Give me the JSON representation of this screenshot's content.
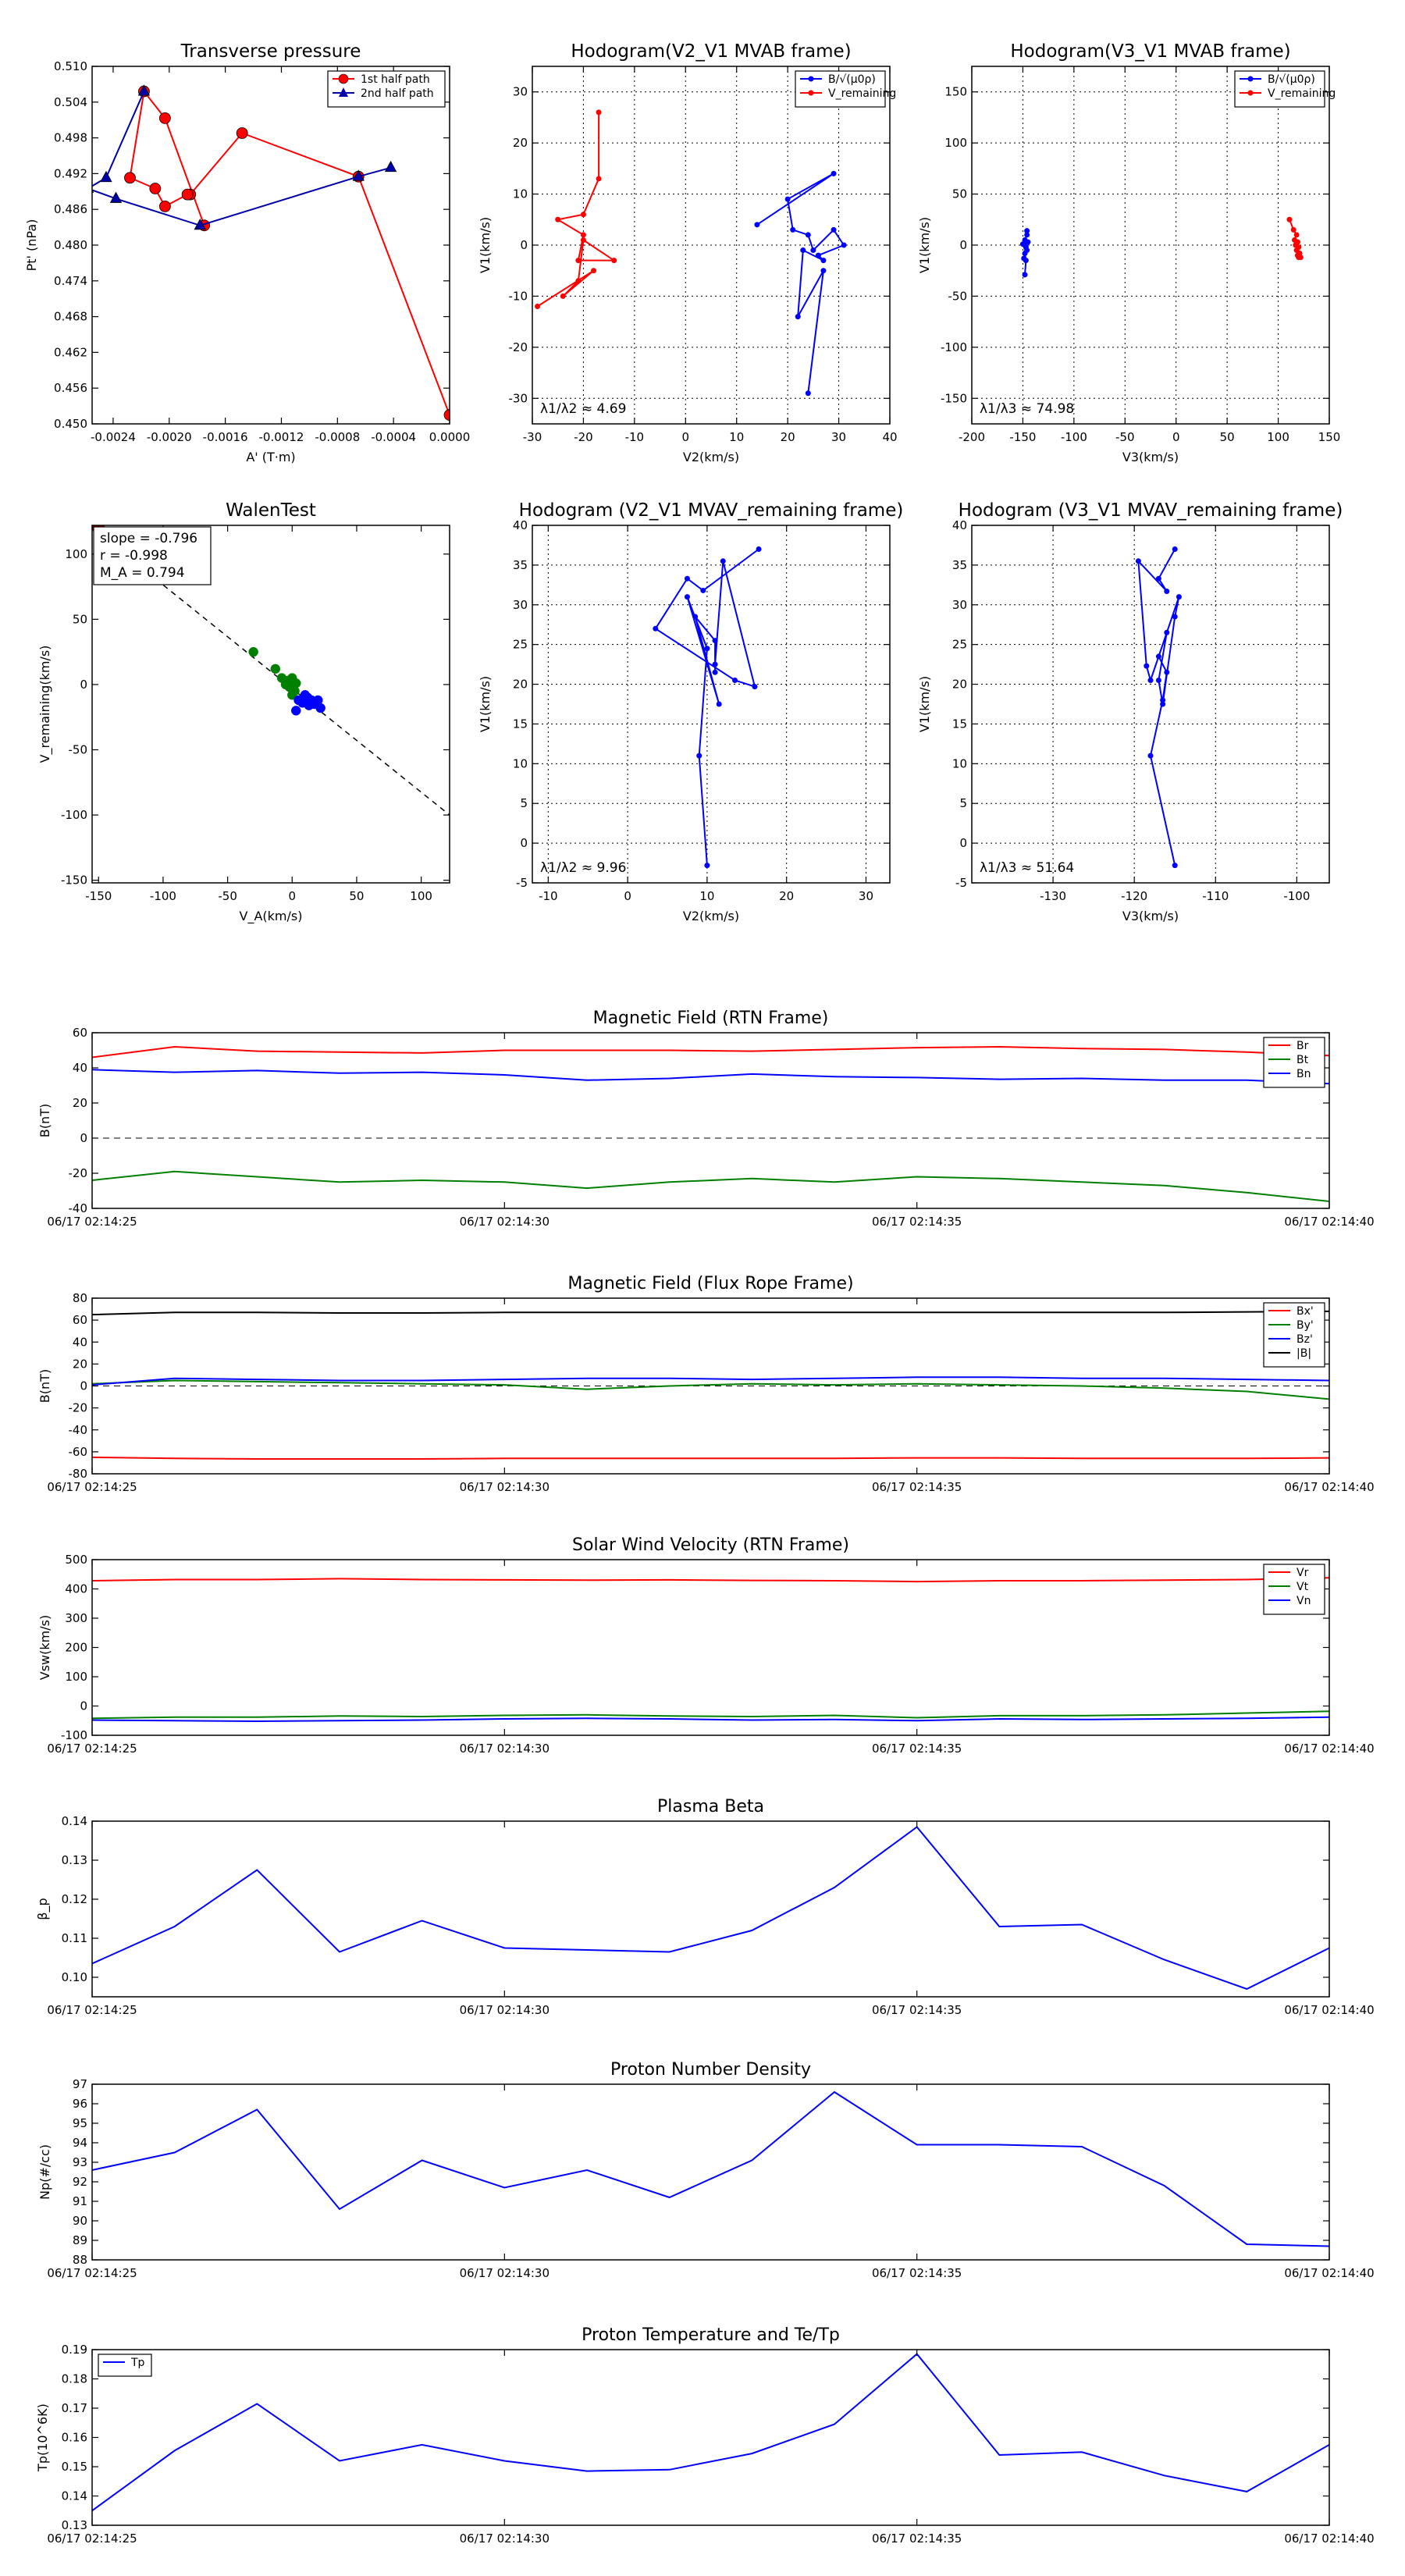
{
  "chart_data": [
    {
      "id": "tp",
      "type": "scatter",
      "title": "Transverse pressure",
      "xlabel": "A' (T·m)",
      "ylabel": "Pt' (nPa)",
      "xlim": [
        -0.00255,
        0.0
      ],
      "ylim": [
        0.45,
        0.51
      ],
      "xticks": [
        -0.0024,
        -0.002,
        -0.0016,
        -0.0012,
        -0.0008,
        -0.0004,
        0.0
      ],
      "xtick_labels": [
        "-0.0024",
        "-0.0020",
        "-0.0016",
        "-0.0012",
        "-0.0008",
        "-0.0004",
        "0.0000"
      ],
      "yticks": [
        0.45,
        0.456,
        0.462,
        0.468,
        0.474,
        0.48,
        0.486,
        0.492,
        0.498,
        0.504,
        0.51
      ],
      "ytick_labels": [
        "0.450",
        "0.456",
        "0.462",
        "0.468",
        "0.474",
        "0.480",
        "0.486",
        "0.492",
        "0.498",
        "0.504",
        "0.510"
      ],
      "legend": "top-right",
      "series": [
        {
          "name": "1st half path",
          "color": "#ff0000",
          "marker": "circle",
          "x": [
            0.0,
            -0.00065,
            -0.00148,
            -0.00185,
            -0.00187,
            -0.00203,
            -0.0021,
            -0.00228,
            -0.00218,
            -0.00203,
            -0.00175
          ],
          "y": [
            0.4515,
            0.4915,
            0.4988,
            0.4885,
            0.4885,
            0.4865,
            0.4895,
            0.4913,
            0.5058,
            0.5013,
            0.4833
          ]
        },
        {
          "name": "2nd half path",
          "color": "#0000aa",
          "marker": "triangle",
          "x": [
            -0.00042,
            -0.00065,
            -0.00178,
            -0.00238,
            -0.00258,
            -0.00245,
            -0.00218
          ],
          "y": [
            0.493,
            0.4915,
            0.4833,
            0.4878,
            0.4895,
            0.4913,
            0.5058
          ]
        }
      ]
    },
    {
      "id": "h1",
      "type": "line",
      "title": "Hodogram(V2_V1 MVAB frame)",
      "xlabel": "V2(km/s)",
      "ylabel": "V1(km/s)",
      "xlim": [
        -30,
        40
      ],
      "ylim": [
        -35,
        35
      ],
      "xticks": [
        -30,
        -20,
        -10,
        0,
        10,
        20,
        30,
        40
      ],
      "yticks": [
        -30,
        -20,
        -10,
        0,
        10,
        20,
        30
      ],
      "annotation": "λ1/λ2 ≈ 4.69",
      "legend": "top-right",
      "series": [
        {
          "name": "B/√(μ0ρ)",
          "color": "#0000ff",
          "x": [
            14,
            29,
            20,
            21,
            24,
            25,
            29,
            31,
            26,
            27,
            23,
            22,
            27,
            24
          ],
          "y": [
            4,
            14,
            9,
            3,
            2,
            -1,
            3,
            0,
            -2,
            -3,
            -1,
            -14,
            -5,
            -29
          ]
        },
        {
          "name": "V_remaining",
          "color": "#ff0000",
          "x": [
            -17,
            -17,
            -20,
            -25,
            -20,
            -21,
            -14,
            -20,
            -21,
            -24,
            -18,
            -29
          ],
          "y": [
            26,
            13,
            6,
            5,
            2,
            -3,
            -3,
            1,
            -7,
            -10,
            -5,
            -12
          ]
        }
      ]
    },
    {
      "id": "h2",
      "type": "line",
      "title": "Hodogram(V3_V1 MVAB frame)",
      "xlabel": "V3(km/s)",
      "ylabel": "V1(km/s)",
      "xlim": [
        -200,
        150
      ],
      "ylim": [
        -175,
        175
      ],
      "xticks": [
        -200,
        -150,
        -100,
        -50,
        0,
        50,
        100,
        150
      ],
      "yticks": [
        -150,
        -100,
        -50,
        0,
        50,
        100,
        150
      ],
      "annotation": "λ1/λ3 ≈ 74.98",
      "legend": "top-right",
      "series": [
        {
          "name": "B/√(μ0ρ)",
          "color": "#0000ff",
          "x": [
            -146,
            -146,
            -148,
            -145,
            -150,
            -147,
            -148,
            -146,
            -149,
            -148,
            -147,
            -148
          ],
          "y": [
            14,
            10,
            5,
            3,
            1,
            -2,
            0,
            -5,
            -13,
            -8,
            -15,
            -29
          ]
        },
        {
          "name": "V_remaining",
          "color": "#ff0000",
          "x": [
            111,
            115,
            118,
            116,
            119,
            117,
            120,
            118,
            121,
            119,
            120,
            122
          ],
          "y": [
            25,
            15,
            10,
            5,
            3,
            0,
            -2,
            -5,
            -8,
            -10,
            -12,
            -12
          ]
        }
      ]
    },
    {
      "id": "walen",
      "type": "scatter",
      "title": "WalenTest",
      "xlabel": "V_A(km/s)",
      "ylabel": "V_remaining(km/s)",
      "xlim": [
        -155,
        122
      ],
      "ylim": [
        -152,
        122
      ],
      "xticks": [
        -150,
        -100,
        -50,
        0,
        50,
        100
      ],
      "yticks": [
        -150,
        -100,
        -50,
        0,
        50,
        100
      ],
      "legend_box": [
        "slope = -0.796",
        "r = -0.998",
        "M_A = 0.794"
      ],
      "fit_line": {
        "x": [
          -155,
          122
        ],
        "y": [
          120,
          -100
        ]
      },
      "series": [
        {
          "name": "green",
          "color": "#008000",
          "x": [
            -30,
            -13,
            -8,
            -3,
            0,
            -5,
            3,
            -2,
            2,
            0
          ],
          "y": [
            25,
            12,
            5,
            3,
            5,
            0,
            1,
            -2,
            -5,
            -8
          ]
        },
        {
          "name": "blue",
          "color": "#0000ff",
          "x": [
            5,
            10,
            12,
            15,
            17,
            20,
            22,
            18,
            13,
            8,
            3,
            11
          ],
          "y": [
            -12,
            -8,
            -10,
            -12,
            -15,
            -12,
            -18,
            -14,
            -16,
            -14,
            -20,
            -13
          ]
        },
        {
          "name": "red",
          "color": "#cc0000",
          "x": [
            -150,
            -147
          ],
          "y": [
            120,
            116
          ]
        }
      ]
    },
    {
      "id": "h3",
      "type": "line",
      "title": "Hodogram (V2_V1 MVAV_remaining frame)",
      "xlabel": "V2(km/s)",
      "ylabel": "V1(km/s)",
      "xlim": [
        -12,
        33
      ],
      "ylim": [
        -5,
        40
      ],
      "xticks": [
        -10,
        0,
        10,
        20,
        30
      ],
      "yticks": [
        -5,
        0,
        5,
        10,
        15,
        20,
        25,
        30,
        35,
        40
      ],
      "annotation": "λ1/λ2 ≈ 9.96",
      "series": [
        {
          "name": "B",
          "color": "#0000ff",
          "x": [
            16.5,
            9.5,
            7.5,
            3.5,
            13.5,
            16,
            12,
            11,
            11,
            11,
            8.5,
            11.5,
            7.5,
            10,
            9,
            10
          ],
          "y": [
            37,
            31.8,
            33.3,
            27,
            20.5,
            19.7,
            35.5,
            22.5,
            21.5,
            25.5,
            28.5,
            17.5,
            31,
            24.5,
            11,
            -2.8
          ]
        }
      ]
    },
    {
      "id": "h4",
      "type": "line",
      "title": "Hodogram (V3_V1 MVAV_remaining frame)",
      "xlabel": "V3(km/s)",
      "ylabel": "V1(km/s)",
      "xlim": [
        -140,
        -96
      ],
      "ylim": [
        -5,
        40
      ],
      "xticks": [
        -130,
        -120,
        -110,
        -100
      ],
      "yticks": [
        -5,
        0,
        5,
        10,
        15,
        20,
        25,
        30,
        35,
        40
      ],
      "annotation": "λ1/λ3 ≈ 51.64",
      "series": [
        {
          "name": "B",
          "color": "#0000ff",
          "x": [
            -115,
            -117,
            -116,
            -119.5,
            -118.5,
            -118,
            -116,
            -117,
            -116.5,
            -115,
            -114.5,
            -117,
            -116,
            -116.5,
            -118,
            -115
          ],
          "y": [
            37,
            33.3,
            31.7,
            35.5,
            22.3,
            20.5,
            26.5,
            20.5,
            17.5,
            28.5,
            31,
            23.5,
            21.5,
            18,
            11,
            -2.8
          ]
        }
      ]
    },
    {
      "id": "mag_rtn",
      "type": "line",
      "title": "Magnetic Field (RTN Frame)",
      "ylabel": "B(nT)",
      "xlim": [
        0,
        15
      ],
      "ylim": [
        -40,
        60
      ],
      "yticks": [
        -40,
        -20,
        0,
        20,
        40,
        60
      ],
      "xticks": [
        0,
        5,
        10,
        15
      ],
      "xtick_labels": [
        "06/17 02:14:25",
        "06/17 02:14:30",
        "06/17 02:14:35",
        "06/17 02:14:40"
      ],
      "zero_line": true,
      "legend": "top-right",
      "x": [
        0,
        1,
        2,
        3,
        4,
        5,
        6,
        7,
        8,
        9,
        10,
        11,
        12,
        13,
        14,
        15
      ],
      "series": [
        {
          "name": "Br",
          "color": "#ff0000",
          "values": [
            46,
            52,
            49.5,
            49,
            48.5,
            50,
            50,
            50,
            49.5,
            50.5,
            51.5,
            52,
            51,
            50.5,
            49,
            47
          ]
        },
        {
          "name": "Bt",
          "color": "#008000",
          "values": [
            -24,
            -19,
            -22,
            -25,
            -24,
            -25,
            -28.5,
            -25,
            -23,
            -25,
            -22,
            -23,
            -25,
            -27,
            -31,
            -36
          ]
        },
        {
          "name": "Bn",
          "color": "#0000ff",
          "values": [
            39,
            37.5,
            38.5,
            37,
            37.5,
            36,
            33,
            34,
            36.5,
            35,
            34.5,
            33.5,
            34,
            33,
            33,
            31
          ]
        }
      ]
    },
    {
      "id": "mag_fr",
      "type": "line",
      "title": "Magnetic Field (Flux Rope Frame)",
      "ylabel": "B(nT)",
      "xlim": [
        0,
        15
      ],
      "ylim": [
        -80,
        80
      ],
      "yticks": [
        -80,
        -60,
        -40,
        -20,
        0,
        20,
        40,
        60,
        80
      ],
      "xticks": [
        0,
        5,
        10,
        15
      ],
      "xtick_labels": [
        "06/17 02:14:25",
        "06/17 02:14:30",
        "06/17 02:14:35",
        "06/17 02:14:40"
      ],
      "zero_line": true,
      "legend": "top-right",
      "x": [
        0,
        1,
        2,
        3,
        4,
        5,
        6,
        7,
        8,
        9,
        10,
        11,
        12,
        13,
        14,
        15
      ],
      "series": [
        {
          "name": "Bx'",
          "color": "#ff0000",
          "values": [
            -65,
            -66,
            -66.5,
            -66.5,
            -66.5,
            -66,
            -66,
            -66,
            -66,
            -66,
            -65.5,
            -65.5,
            -66,
            -66,
            -66,
            -65.5
          ]
        },
        {
          "name": "By'",
          "color": "#008000",
          "values": [
            2,
            5,
            4,
            3,
            2,
            1,
            -3,
            0,
            2,
            1,
            2,
            1,
            0,
            -2,
            -5,
            -12
          ]
        },
        {
          "name": "Bz'",
          "color": "#0000ff",
          "values": [
            1,
            7,
            6,
            5,
            5,
            6,
            7,
            7,
            6,
            7,
            8,
            8,
            7,
            7,
            6,
            5
          ]
        },
        {
          "name": "|B|",
          "color": "#000000",
          "values": [
            65,
            67,
            67,
            66.5,
            66.5,
            67,
            67,
            67,
            67,
            67,
            67,
            67,
            67,
            67,
            67.5,
            68
          ]
        }
      ]
    },
    {
      "id": "vel",
      "type": "line",
      "title": "Solar Wind Velocity (RTN Frame)",
      "ylabel": "Vsw(km/s)",
      "xlim": [
        0,
        15
      ],
      "ylim": [
        -100,
        500
      ],
      "yticks": [
        -100,
        0,
        100,
        200,
        300,
        400,
        500
      ],
      "xticks": [
        0,
        5,
        10,
        15
      ],
      "xtick_labels": [
        "06/17 02:14:25",
        "06/17 02:14:30",
        "06/17 02:14:35",
        "06/17 02:14:40"
      ],
      "legend": "top-right",
      "x": [
        0,
        1,
        2,
        3,
        4,
        5,
        6,
        7,
        8,
        9,
        10,
        11,
        12,
        13,
        14,
        15
      ],
      "series": [
        {
          "name": "Vr",
          "color": "#ff0000",
          "values": [
            428,
            432,
            432,
            435,
            432,
            431,
            430,
            431,
            429,
            428,
            425,
            428,
            428,
            430,
            432,
            438
          ]
        },
        {
          "name": "Vt",
          "color": "#008000",
          "values": [
            -42,
            -38,
            -38,
            -34,
            -36,
            -32,
            -30,
            -34,
            -36,
            -32,
            -40,
            -33,
            -33,
            -30,
            -24,
            -18
          ]
        },
        {
          "name": "Vn",
          "color": "#0000ff",
          "values": [
            -48,
            -50,
            -52,
            -50,
            -48,
            -44,
            -42,
            -44,
            -48,
            -46,
            -50,
            -44,
            -46,
            -44,
            -42,
            -38
          ]
        }
      ]
    },
    {
      "id": "beta",
      "type": "line",
      "title": "Plasma Beta",
      "ylabel": "β_p",
      "xlim": [
        0,
        15
      ],
      "ylim": [
        0.095,
        0.14
      ],
      "yticks": [
        0.1,
        0.11,
        0.12,
        0.13,
        0.14
      ],
      "ytick_labels": [
        "0.10",
        "0.11",
        "0.12",
        "0.13",
        "0.14"
      ],
      "xticks": [
        0,
        5,
        10,
        15
      ],
      "xtick_labels": [
        "06/17 02:14:25",
        "06/17 02:14:30",
        "06/17 02:14:35",
        "06/17 02:14:40"
      ],
      "x": [
        0,
        1,
        2,
        3,
        4,
        5,
        6,
        7,
        8,
        9,
        10,
        11,
        12,
        13,
        14,
        15
      ],
      "series": [
        {
          "name": "beta",
          "color": "#0000ff",
          "values": [
            0.1035,
            0.113,
            0.1275,
            0.1065,
            0.1145,
            0.1075,
            0.107,
            0.1065,
            0.112,
            0.123,
            0.1385,
            0.113,
            0.1135,
            0.1045,
            0.097,
            0.1075
          ]
        }
      ]
    },
    {
      "id": "density",
      "type": "line",
      "title": "Proton Number Density",
      "ylabel": "Np(#/cc)",
      "xlim": [
        0,
        15
      ],
      "ylim": [
        88,
        97
      ],
      "yticks": [
        88,
        89,
        90,
        91,
        92,
        93,
        94,
        95,
        96,
        97
      ],
      "xticks": [
        0,
        5,
        10,
        15
      ],
      "xtick_labels": [
        "06/17 02:14:25",
        "06/17 02:14:30",
        "06/17 02:14:35",
        "06/17 02:14:40"
      ],
      "x": [
        0,
        1,
        2,
        3,
        4,
        5,
        6,
        7,
        8,
        9,
        10,
        11,
        12,
        13,
        14,
        15
      ],
      "series": [
        {
          "name": "Np",
          "color": "#0000ff",
          "values": [
            92.6,
            93.5,
            95.7,
            90.6,
            93.1,
            91.7,
            92.6,
            91.2,
            93.1,
            96.6,
            93.9,
            93.9,
            93.8,
            91.8,
            88.8,
            88.7
          ]
        }
      ]
    },
    {
      "id": "temp",
      "type": "line",
      "title": "Proton Temperature and Te/Tp",
      "ylabel": "Tp(10^6K)",
      "xlim": [
        0,
        15
      ],
      "ylim": [
        0.13,
        0.19
      ],
      "yticks": [
        0.13,
        0.14,
        0.15,
        0.16,
        0.17,
        0.18,
        0.19
      ],
      "ytick_labels": [
        "0.13",
        "0.14",
        "0.15",
        "0.16",
        "0.17",
        "0.18",
        "0.19"
      ],
      "xticks": [
        0,
        5,
        10,
        15
      ],
      "xtick_labels": [
        "06/17 02:14:25",
        "06/17 02:14:30",
        "06/17 02:14:35",
        "06/17 02:14:40"
      ],
      "legend": "top-left",
      "x": [
        0,
        1,
        2,
        3,
        4,
        5,
        6,
        7,
        8,
        9,
        10,
        11,
        12,
        13,
        14,
        15
      ],
      "series": [
        {
          "name": "Tp",
          "color": "#0000ff",
          "values": [
            0.135,
            0.1555,
            0.1715,
            0.152,
            0.1575,
            0.152,
            0.1485,
            0.149,
            0.1545,
            0.1645,
            0.1885,
            0.154,
            0.155,
            0.147,
            0.1415,
            0.1575
          ]
        }
      ]
    }
  ]
}
